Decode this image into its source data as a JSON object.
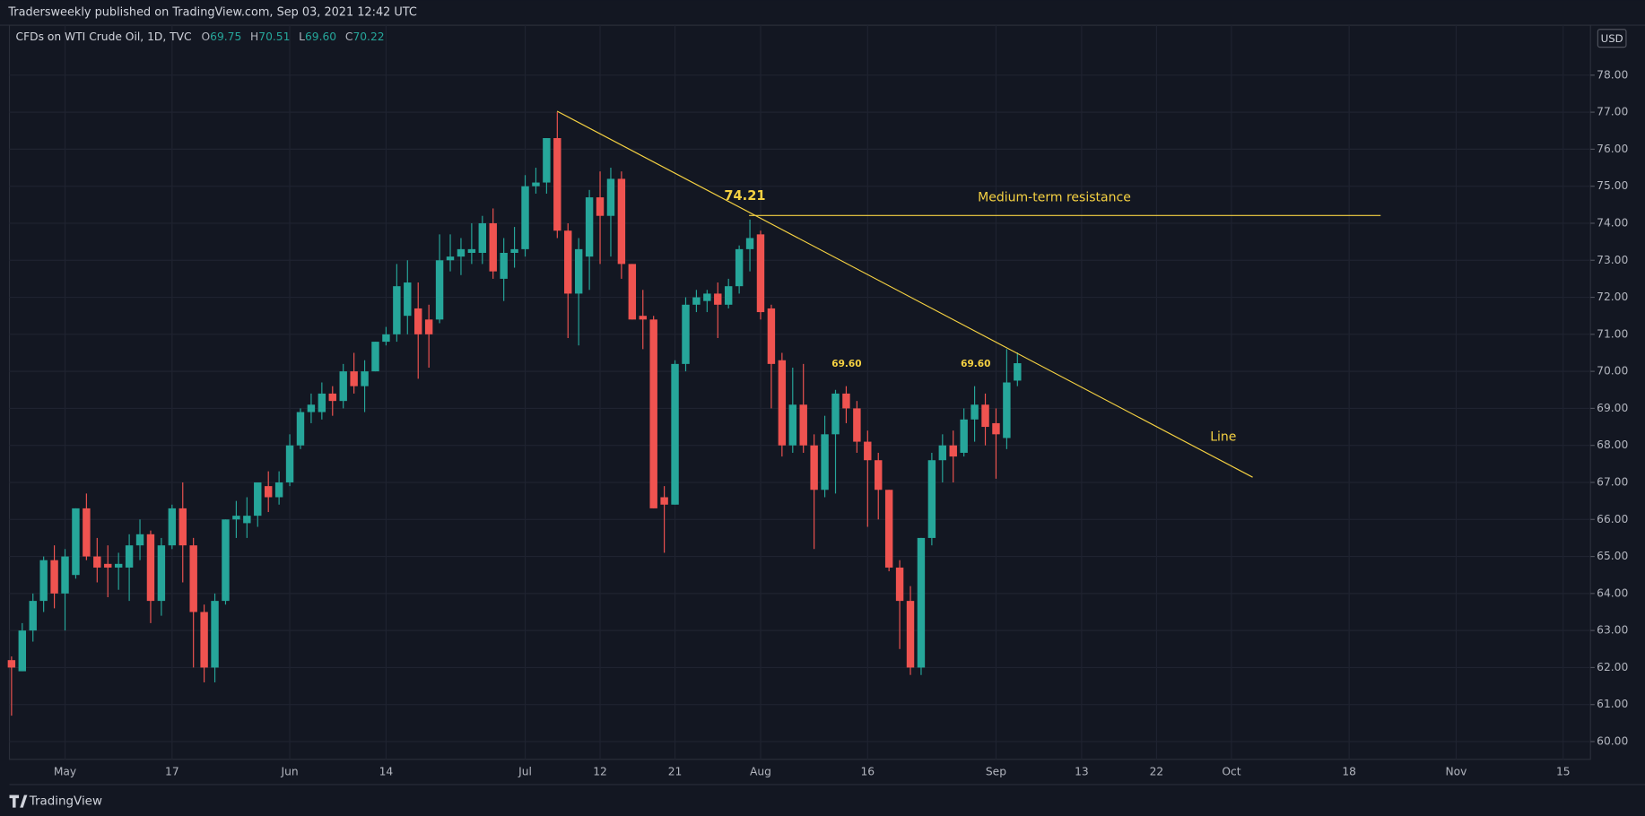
{
  "header": {
    "published": "Tradersweekly published on TradingView.com, Sep 03, 2021 12:42 UTC",
    "footer_brand": "TradingView"
  },
  "chart_data": {
    "type": "candlestick",
    "title": "CFDs on WTI Crude Oil, 1D, TVC",
    "currency": "USD",
    "ohlc_legend": {
      "labels": [
        "O",
        "H",
        "L",
        "C"
      ],
      "values": [
        "69.75",
        "70.51",
        "69.60",
        "70.22"
      ]
    },
    "up_color": "#26a69a",
    "down_color": "#ef5350",
    "grid": true,
    "categories": [
      null,
      null,
      null,
      null,
      null,
      "May",
      null,
      null,
      null,
      null,
      null,
      null,
      null,
      null,
      null,
      "17",
      null,
      null,
      null,
      null,
      null,
      null,
      null,
      null,
      null,
      null,
      "Jun",
      null,
      null,
      null,
      null,
      null,
      null,
      null,
      null,
      "14",
      null,
      null,
      null,
      null,
      null,
      null,
      null,
      null,
      null,
      null,
      null,
      null,
      "Jul",
      null,
      null,
      null,
      null,
      null,
      null,
      "12",
      null,
      null,
      null,
      null,
      null,
      null,
      "21",
      null,
      null,
      null,
      null,
      null,
      null,
      null,
      "Aug",
      null,
      null,
      null,
      null,
      null,
      null,
      null,
      null,
      null,
      "16",
      null,
      null,
      null,
      null,
      null,
      null,
      null,
      null,
      null,
      null,
      null,
      "Sep",
      null,
      null,
      null,
      null,
      null,
      null,
      null,
      "13",
      null,
      null,
      null,
      null,
      null,
      null,
      "22",
      null,
      null,
      null,
      null,
      null,
      null,
      "Oct",
      null,
      null,
      null,
      null,
      null,
      null,
      null,
      null,
      null,
      null,
      "18",
      null,
      null,
      null,
      null,
      null,
      null,
      null,
      null,
      null,
      "Nov",
      null,
      null,
      null,
      null,
      null,
      null,
      null,
      null,
      null,
      "15",
      null,
      null
    ],
    "open": [
      62.2,
      61.9,
      63.0,
      63.8,
      64.9,
      64.0,
      64.5,
      66.3,
      65.0,
      64.8,
      64.7,
      64.7,
      65.3,
      65.6,
      63.8,
      65.3,
      66.3,
      65.3,
      63.5,
      62.0,
      63.8,
      66.0,
      65.9,
      66.1,
      66.9,
      66.6,
      67.0,
      68.0,
      68.9,
      68.9,
      69.4,
      69.2,
      70.0,
      69.6,
      70.0,
      70.8,
      71.0,
      71.5,
      71.7,
      71.4,
      71.4,
      73.0,
      73.1,
      73.2,
      73.2,
      74.0,
      72.5,
      73.2,
      73.3,
      75.0,
      75.1,
      76.3,
      73.8,
      72.1,
      73.1,
      74.7,
      74.2,
      75.2,
      72.9,
      71.5,
      71.4,
      66.6,
      66.4,
      70.2,
      71.8,
      71.9,
      72.1,
      71.8,
      72.3,
      73.3,
      73.7,
      71.7,
      70.3,
      68.0,
      69.1,
      68.0,
      66.8,
      68.3,
      69.4,
      69.0,
      68.1,
      67.6,
      66.8,
      64.7,
      63.8,
      62.0,
      65.5,
      67.6,
      68.0,
      67.8,
      68.7,
      69.1,
      68.6,
      68.2,
      69.75,
      null,
      null,
      null,
      null,
      null,
      null,
      null,
      null,
      null,
      null,
      null,
      null,
      null,
      null,
      null,
      null,
      null,
      null,
      null,
      null,
      null,
      null,
      null,
      null,
      null,
      null,
      null,
      null,
      null,
      null,
      null,
      null,
      null,
      null,
      null,
      null,
      null,
      null,
      null,
      null,
      null,
      null,
      null,
      null,
      null,
      null,
      null,
      null,
      null,
      null,
      null,
      null,
      null
    ],
    "high": [
      62.3,
      63.2,
      64.0,
      65.0,
      65.3,
      65.2,
      66.3,
      66.7,
      65.5,
      65.3,
      65.1,
      65.6,
      66.0,
      65.7,
      65.5,
      66.4,
      67.0,
      65.5,
      63.7,
      64.0,
      66.0,
      66.5,
      66.6,
      67.0,
      67.3,
      67.3,
      68.3,
      69.0,
      69.4,
      69.7,
      69.6,
      70.2,
      70.5,
      70.3,
      70.8,
      71.2,
      72.9,
      73.0,
      72.4,
      71.8,
      73.7,
      73.7,
      73.6,
      74.0,
      74.2,
      74.4,
      73.6,
      73.9,
      75.3,
      75.5,
      76.3,
      77.0,
      74.0,
      73.6,
      74.9,
      75.4,
      75.5,
      75.4,
      72.9,
      72.2,
      71.5,
      66.9,
      70.3,
      72.0,
      72.2,
      72.2,
      72.4,
      72.5,
      73.4,
      74.1,
      73.8,
      71.8,
      70.5,
      70.1,
      70.2,
      68.3,
      68.8,
      69.5,
      69.6,
      69.2,
      68.4,
      67.8,
      66.8,
      64.9,
      64.2,
      65.5,
      67.8,
      68.3,
      68.4,
      69.0,
      69.6,
      69.4,
      69.0,
      70.6,
      70.51,
      null,
      null,
      null,
      null,
      null,
      null,
      null,
      null,
      null,
      null,
      null,
      null,
      null,
      null,
      null,
      null,
      null,
      null,
      null,
      null,
      null,
      null,
      null,
      null,
      null,
      null,
      null,
      null,
      null,
      null,
      null,
      null,
      null,
      null,
      null,
      null,
      null,
      null,
      null,
      null,
      null,
      null,
      null,
      null,
      null,
      null,
      null,
      null,
      null,
      null,
      null,
      null,
      null
    ],
    "low": [
      60.7,
      61.9,
      62.7,
      63.5,
      63.6,
      63.0,
      64.4,
      64.9,
      64.3,
      63.9,
      64.1,
      63.8,
      64.9,
      63.2,
      63.4,
      65.2,
      64.3,
      62.0,
      61.6,
      61.6,
      63.7,
      65.5,
      65.5,
      65.8,
      66.2,
      66.4,
      66.9,
      67.9,
      68.6,
      68.7,
      68.8,
      69.0,
      69.4,
      68.9,
      70.0,
      70.7,
      70.8,
      71.0,
      69.8,
      70.1,
      71.3,
      72.7,
      72.6,
      72.9,
      72.9,
      72.5,
      71.9,
      72.8,
      73.1,
      74.8,
      74.8,
      73.6,
      70.9,
      70.7,
      72.2,
      72.9,
      73.1,
      72.5,
      71.4,
      70.6,
      66.3,
      65.1,
      66.4,
      70.0,
      71.6,
      71.6,
      70.9,
      71.7,
      72.1,
      72.7,
      71.4,
      69.0,
      67.7,
      67.8,
      67.8,
      65.2,
      66.6,
      66.7,
      68.6,
      67.8,
      65.8,
      66.0,
      64.6,
      62.5,
      61.8,
      61.8,
      65.3,
      67.0,
      67.0,
      67.7,
      68.1,
      68.0,
      67.1,
      67.9,
      69.6,
      null,
      null,
      null,
      null,
      null,
      null,
      null,
      null,
      null,
      null,
      null,
      null,
      null,
      null,
      null,
      null,
      null,
      null,
      null,
      null,
      null,
      null,
      null,
      null,
      null,
      null,
      null,
      null,
      null,
      null,
      null,
      null,
      null,
      null,
      null,
      null,
      null,
      null,
      null,
      null,
      null,
      null,
      null,
      null,
      null,
      null,
      null,
      null,
      null,
      null,
      null,
      null,
      null
    ],
    "close": [
      62.0,
      63.0,
      63.8,
      64.9,
      64.0,
      65.0,
      66.3,
      65.0,
      64.7,
      64.7,
      64.8,
      65.3,
      65.6,
      63.8,
      65.3,
      66.3,
      65.3,
      63.5,
      62.0,
      63.8,
      66.0,
      66.1,
      66.1,
      67.0,
      66.6,
      67.0,
      68.0,
      68.9,
      69.1,
      69.4,
      69.2,
      70.0,
      69.6,
      70.0,
      70.8,
      71.0,
      72.3,
      72.4,
      71.0,
      71.0,
      73.0,
      73.1,
      73.3,
      73.3,
      74.0,
      72.7,
      73.2,
      73.3,
      75.0,
      75.1,
      76.3,
      73.8,
      72.1,
      73.3,
      74.7,
      74.2,
      75.2,
      72.9,
      71.4,
      71.4,
      66.3,
      66.4,
      70.2,
      71.8,
      72.0,
      72.1,
      71.8,
      72.3,
      73.3,
      73.6,
      71.6,
      70.2,
      68.0,
      69.1,
      68.0,
      66.8,
      68.3,
      69.4,
      69.0,
      68.1,
      67.6,
      66.8,
      64.7,
      63.8,
      62.0,
      65.5,
      67.6,
      68.0,
      67.7,
      68.7,
      69.1,
      68.5,
      68.3,
      69.7,
      70.22,
      null,
      null,
      null,
      null,
      null,
      null,
      null,
      null,
      null,
      null,
      null,
      null,
      null,
      null,
      null,
      null,
      null,
      null,
      null,
      null,
      null,
      null,
      null,
      null,
      null,
      null,
      null,
      null,
      null,
      null,
      null,
      null,
      null,
      null,
      null,
      null,
      null,
      null,
      null,
      null,
      null,
      null,
      null,
      null,
      null,
      null,
      null,
      null,
      null,
      null,
      null,
      null,
      null
    ],
    "ylim": [
      59.52,
      79.35
    ],
    "yticks": [
      {
        "value": 60,
        "label": "60.00"
      },
      {
        "value": 61,
        "label": "61.00"
      },
      {
        "value": 62,
        "label": "62.00"
      },
      {
        "value": 63,
        "label": "63.00"
      },
      {
        "value": 64,
        "label": "64.00"
      },
      {
        "value": 65,
        "label": "65.00"
      },
      {
        "value": 66,
        "label": "66.00"
      },
      {
        "value": 67,
        "label": "67.00"
      },
      {
        "value": 68,
        "label": "68.00"
      },
      {
        "value": 69,
        "label": "69.00"
      },
      {
        "value": 70,
        "label": "70.00"
      },
      {
        "value": 71,
        "label": "71.00"
      },
      {
        "value": 72,
        "label": "72.00"
      },
      {
        "value": 73,
        "label": "73.00"
      },
      {
        "value": 74,
        "label": "74.00"
      },
      {
        "value": 75,
        "label": "75.00"
      },
      {
        "value": 76,
        "label": "76.00"
      },
      {
        "value": 77,
        "label": "77.00"
      },
      {
        "value": 78,
        "label": "78.00"
      }
    ],
    "resistance": {
      "value": 74.21,
      "label": "Medium-term resistance",
      "color": "#f5d142"
    },
    "price_notes": [
      {
        "value": 69.6,
        "label": "69.60"
      },
      {
        "value": 69.6,
        "label": "69.60"
      }
    ],
    "trendline_label": "Line"
  }
}
